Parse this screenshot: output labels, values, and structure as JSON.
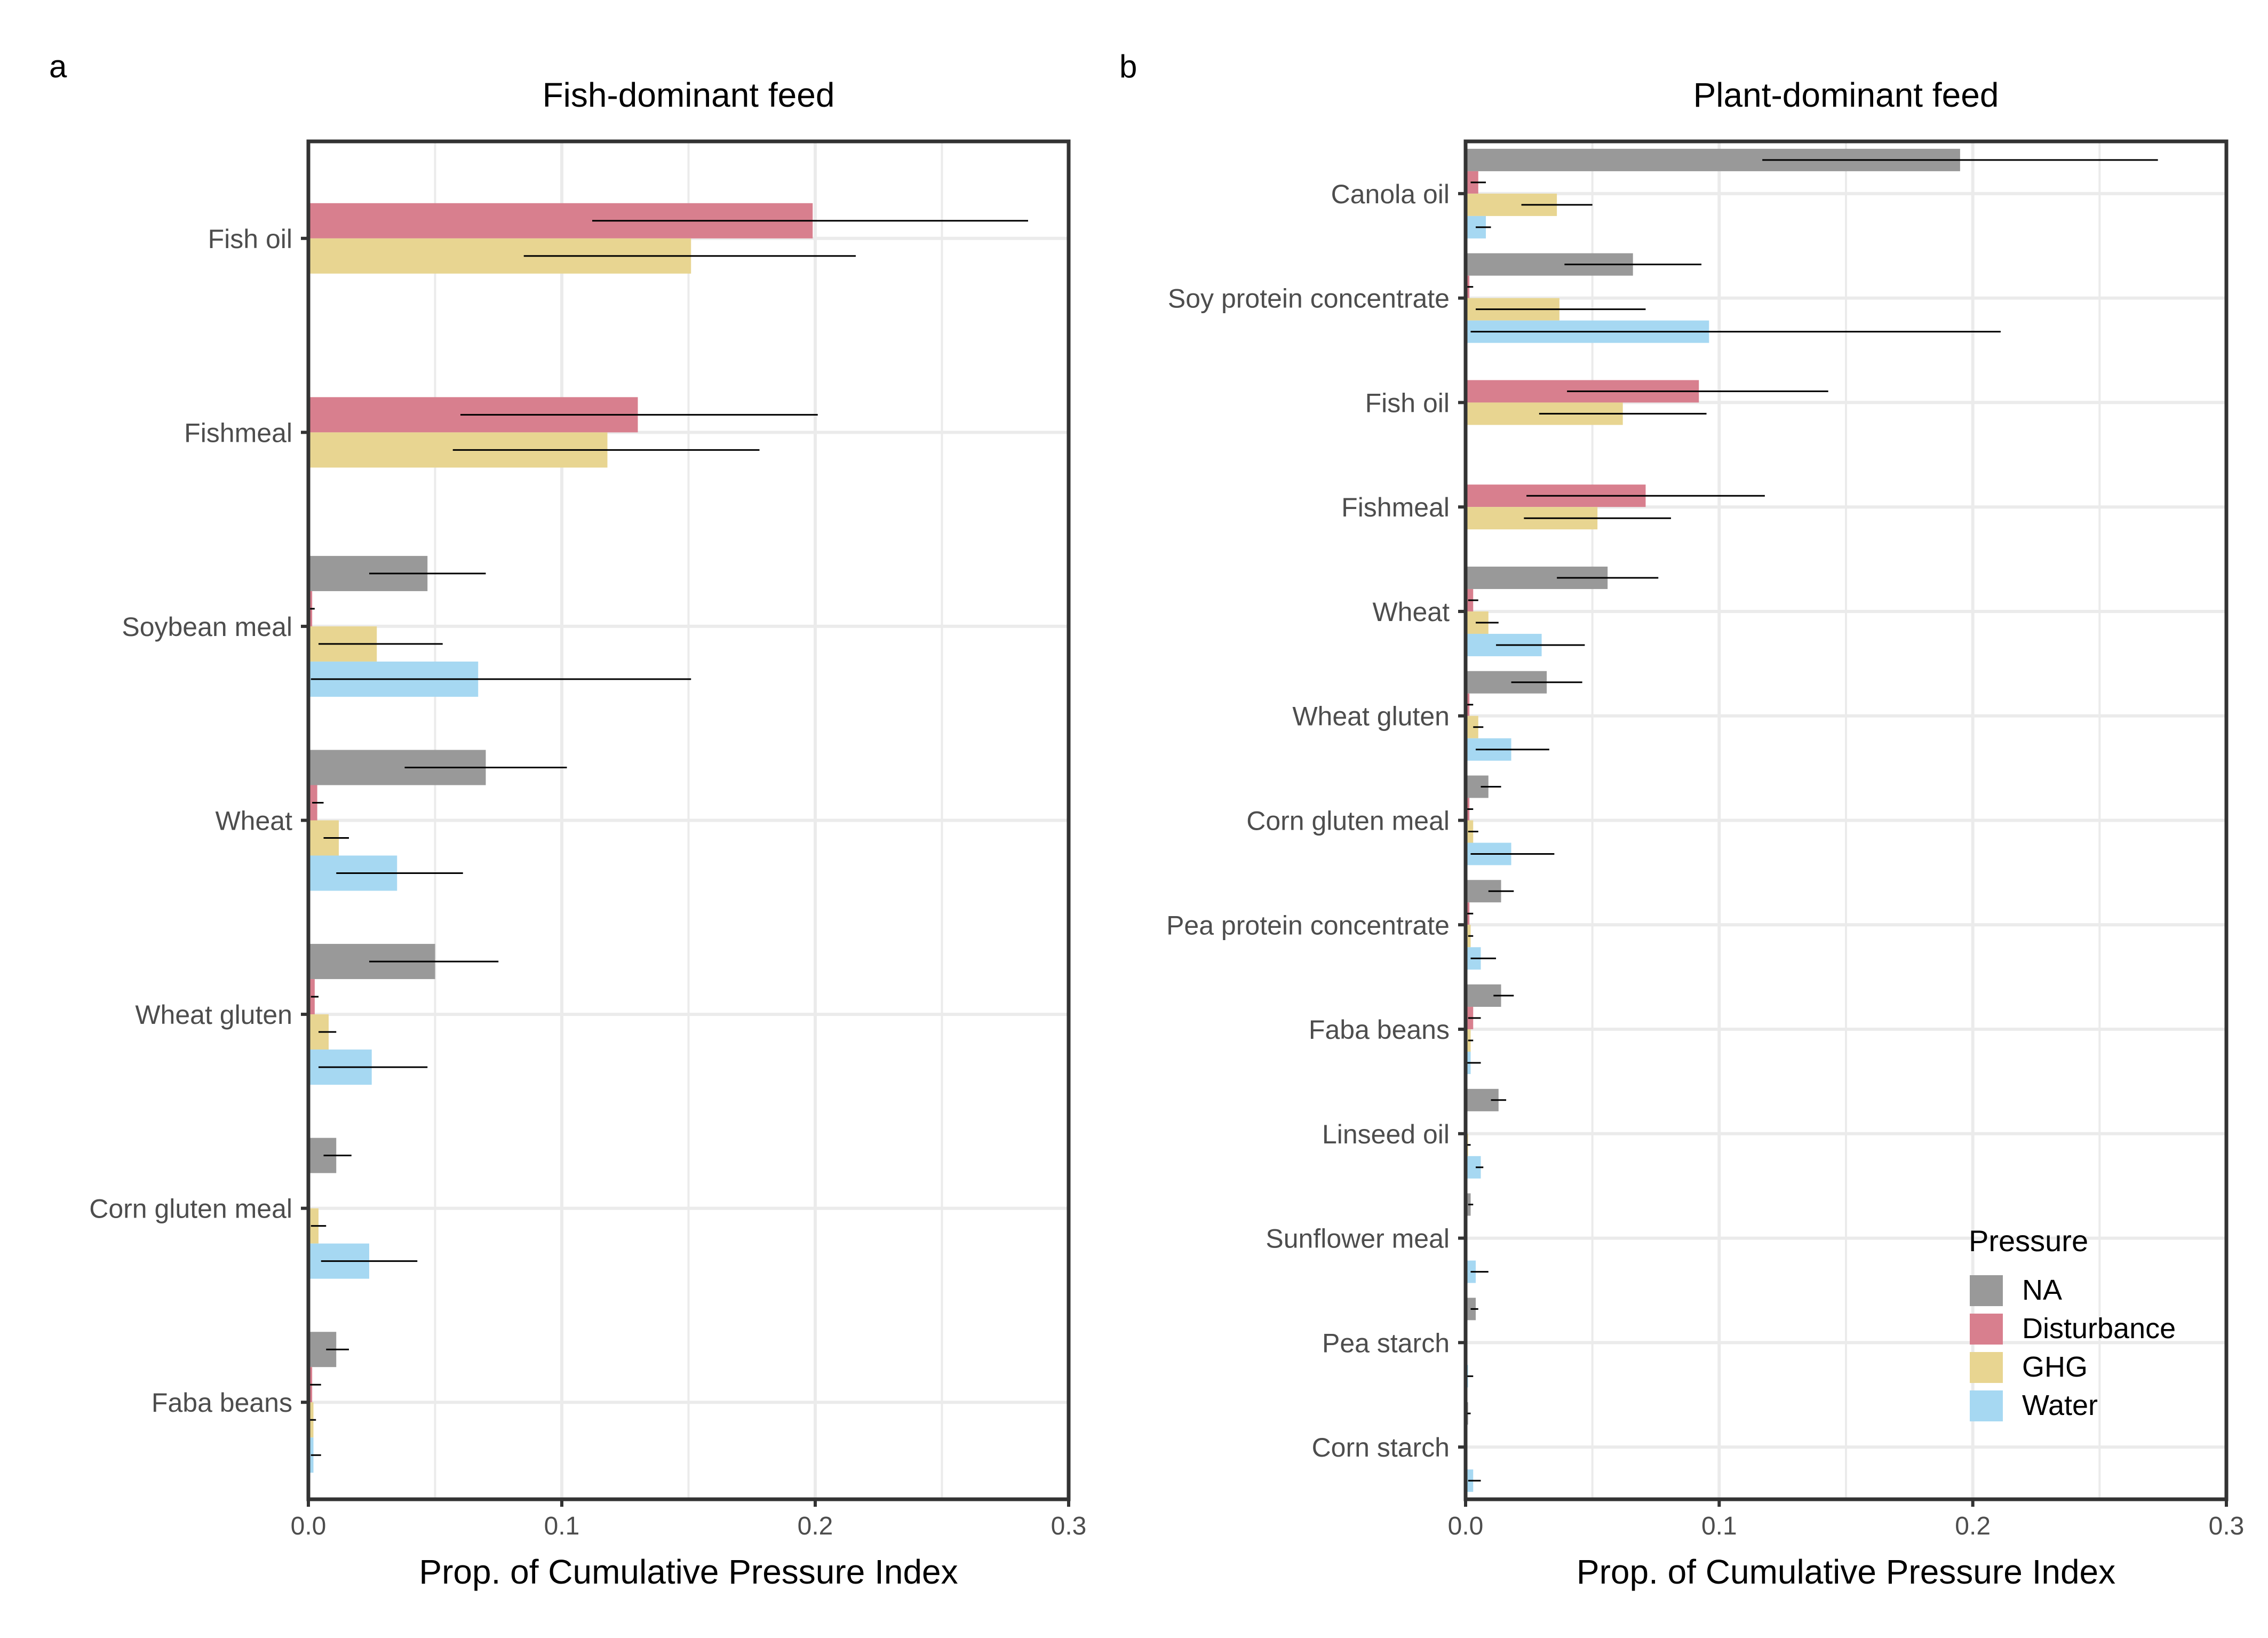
{
  "figure": {
    "panel_a_letter": "a",
    "panel_b_letter": "b"
  },
  "colors": {
    "NA": "#999999",
    "Disturbance": "#d87f8e",
    "GHG": "#e8d591",
    "Water": "#a6d8f2",
    "grid": "#ebebeb",
    "axis": "#333333",
    "error_bar": "#000000"
  },
  "legend": {
    "title": "Pressure",
    "placement": "bottom-right inside panel b",
    "items": [
      "NA",
      "Disturbance",
      "GHG",
      "Water"
    ]
  },
  "chart_data": [
    {
      "type": "bar",
      "orientation": "horizontal",
      "title": "Fish-dominant feed",
      "xlabel": "Prop. of Cumulative Pressure Index",
      "ylabel": "",
      "xlim": [
        0,
        0.3
      ],
      "xticks": [
        "0.0",
        "0.1",
        "0.2",
        "0.3"
      ],
      "grid": true,
      "categories": [
        "Fish oil",
        "Fishmeal",
        "Soybean meal",
        "Wheat",
        "Wheat gluten",
        "Corn gluten meal",
        "Faba beans"
      ],
      "series": [
        {
          "name": "NA",
          "values": [
            null,
            null,
            0.047,
            0.07,
            0.05,
            0.011,
            0.011
          ]
        },
        {
          "name": "Disturbance",
          "values": [
            0.199,
            0.13,
            0.0015,
            0.0035,
            0.0025,
            null,
            0.0015
          ]
        },
        {
          "name": "GHG",
          "values": [
            0.151,
            0.118,
            0.027,
            0.012,
            0.008,
            0.004,
            0.002
          ]
        },
        {
          "name": "Water",
          "values": [
            null,
            null,
            0.067,
            0.035,
            0.025,
            0.024,
            0.002
          ]
        }
      ],
      "error_bars": [
        {
          "name": "NA",
          "low": [
            null,
            null,
            0.024,
            0.038,
            0.024,
            0.006,
            0.007
          ],
          "high": [
            null,
            null,
            0.07,
            0.102,
            0.075,
            0.017,
            0.016
          ]
        },
        {
          "name": "Disturbance",
          "low": [
            0.112,
            0.06,
            0.0005,
            0.0015,
            0.001,
            null,
            0.0005
          ],
          "high": [
            0.284,
            0.201,
            0.0025,
            0.006,
            0.004,
            null,
            0.005
          ]
        },
        {
          "name": "GHG",
          "low": [
            0.085,
            0.057,
            0.004,
            0.006,
            0.004,
            0.001,
            0.0005
          ],
          "high": [
            0.216,
            0.178,
            0.053,
            0.016,
            0.011,
            0.007,
            0.003
          ]
        },
        {
          "name": "Water",
          "low": [
            null,
            null,
            0.001,
            0.011,
            0.004,
            0.005,
            0.001
          ],
          "high": [
            null,
            null,
            0.151,
            0.061,
            0.047,
            0.043,
            0.005
          ]
        }
      ]
    },
    {
      "type": "bar",
      "orientation": "horizontal",
      "title": "Plant-dominant feed",
      "xlabel": "Prop. of Cumulative Pressure Index",
      "ylabel": "",
      "xlim": [
        0,
        0.3
      ],
      "xticks": [
        "0.0",
        "0.1",
        "0.2",
        "0.3"
      ],
      "grid": true,
      "categories": [
        "Canola oil",
        "Soy protein concentrate",
        "Fish oil",
        "Fishmeal",
        "Wheat",
        "Wheat gluten",
        "Corn gluten meal",
        "Pea protein concentrate",
        "Faba beans",
        "Linseed oil",
        "Sunflower meal",
        "Pea starch",
        "Corn starch"
      ],
      "series": [
        {
          "name": "NA",
          "values": [
            0.195,
            0.066,
            null,
            null,
            0.056,
            0.032,
            0.009,
            0.014,
            0.014,
            0.013,
            0.002,
            0.004,
            0.001
          ]
        },
        {
          "name": "Disturbance",
          "values": [
            0.005,
            0.0015,
            0.092,
            0.071,
            0.003,
            0.0015,
            0.0015,
            0.0015,
            0.003,
            null,
            null,
            null,
            null
          ]
        },
        {
          "name": "GHG",
          "values": [
            0.036,
            0.037,
            0.062,
            0.052,
            0.009,
            0.005,
            0.003,
            0.002,
            0.002,
            0.001,
            null,
            null,
            null
          ]
        },
        {
          "name": "Water",
          "values": [
            0.008,
            0.096,
            null,
            null,
            0.03,
            0.018,
            0.018,
            0.006,
            0.002,
            0.006,
            0.004,
            0.001,
            0.003
          ]
        }
      ],
      "error_bars": [
        {
          "name": "NA",
          "low": [
            0.117,
            0.039,
            null,
            null,
            0.036,
            0.018,
            0.006,
            0.009,
            0.011,
            0.01,
            0.001,
            0.002,
            0.0005
          ],
          "high": [
            0.273,
            0.093,
            null,
            null,
            0.076,
            0.046,
            0.014,
            0.019,
            0.019,
            0.016,
            0.003,
            0.005,
            0.002
          ]
        },
        {
          "name": "Disturbance",
          "low": [
            0.002,
            0.0005,
            0.04,
            0.024,
            0.001,
            0.0005,
            0.0005,
            0.0005,
            0.001,
            null,
            null,
            null,
            null
          ],
          "high": [
            0.008,
            0.003,
            0.143,
            0.118,
            0.005,
            0.003,
            0.003,
            0.003,
            0.006,
            null,
            null,
            null,
            null
          ]
        },
        {
          "name": "GHG",
          "low": [
            0.022,
            0.004,
            0.029,
            0.023,
            0.004,
            0.003,
            0.001,
            0.001,
            0.001,
            0.0005,
            null,
            null,
            null
          ],
          "high": [
            0.05,
            0.071,
            0.095,
            0.081,
            0.013,
            0.007,
            0.005,
            0.003,
            0.003,
            0.002,
            null,
            null,
            null
          ]
        },
        {
          "name": "Water",
          "low": [
            0.004,
            0.002,
            null,
            null,
            0.012,
            0.004,
            0.002,
            0.002,
            0.0005,
            0.004,
            0.002,
            0.0005,
            0.001
          ],
          "high": [
            0.01,
            0.211,
            null,
            null,
            0.047,
            0.033,
            0.035,
            0.012,
            0.006,
            0.007,
            0.009,
            0.003,
            0.006
          ]
        }
      ]
    }
  ]
}
